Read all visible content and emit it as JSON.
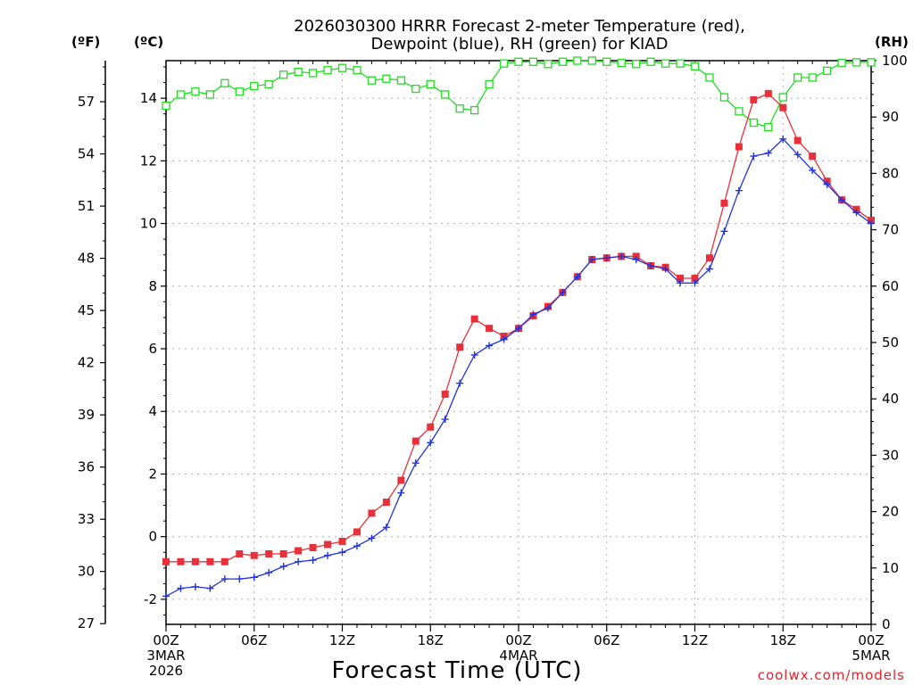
{
  "chart_data": {
    "type": "line",
    "title_line1": "2026030300 HRRR Forecast 2-meter Temperature (red),",
    "title_line2": "Dewpoint (blue), RH (green) for KIAD",
    "xlabel": "Forecast Time (UTC)",
    "credit": "coolwx.com/models",
    "units": {
      "fahrenheit": "(ºF)",
      "celsius": "(ºC)",
      "rh": "(RH)"
    },
    "x_range": [
      0,
      48
    ],
    "celsius_range": [
      -2.8,
      15.2
    ],
    "rh_range": [
      0,
      100
    ],
    "celsius_ticks": [
      "-2",
      "0",
      "2",
      "4",
      "6",
      "8",
      "10",
      "12",
      "14"
    ],
    "fahrenheit_ticks": [
      "27",
      "30",
      "33",
      "36",
      "39",
      "42",
      "45",
      "48",
      "51",
      "54",
      "57"
    ],
    "rh_ticks": [
      "0",
      "10",
      "20",
      "30",
      "40",
      "50",
      "60",
      "70",
      "80",
      "90",
      "100"
    ],
    "x_ticks": [
      {
        "hour": 0,
        "line1": "00Z",
        "line2": "3MAR",
        "line3": "2026"
      },
      {
        "hour": 6,
        "line1": "06Z",
        "line2": "",
        "line3": ""
      },
      {
        "hour": 12,
        "line1": "12Z",
        "line2": "",
        "line3": ""
      },
      {
        "hour": 18,
        "line1": "18Z",
        "line2": "",
        "line3": ""
      },
      {
        "hour": 24,
        "line1": "00Z",
        "line2": "4MAR",
        "line3": ""
      },
      {
        "hour": 30,
        "line1": "06Z",
        "line2": "",
        "line3": ""
      },
      {
        "hour": 36,
        "line1": "12Z",
        "line2": "",
        "line3": ""
      },
      {
        "hour": 42,
        "line1": "18Z",
        "line2": "",
        "line3": ""
      },
      {
        "hour": 48,
        "line1": "00Z",
        "line2": "5MAR",
        "line3": ""
      }
    ],
    "colors": {
      "temperature": "#e8303a",
      "dewpoint": "#2233dd",
      "rh": "#22dd22"
    },
    "series": [
      {
        "name": "Temperature (°C)",
        "axis": "celsius",
        "values": [
          -0.8,
          -0.8,
          -0.8,
          -0.8,
          -0.8,
          -0.55,
          -0.6,
          -0.55,
          -0.55,
          -0.45,
          -0.35,
          -0.25,
          -0.15,
          0.15,
          0.75,
          1.1,
          1.8,
          3.05,
          3.5,
          4.55,
          6.05,
          6.95,
          6.65,
          6.4,
          6.65,
          7.05,
          7.35,
          7.8,
          8.3,
          8.85,
          8.9,
          8.95,
          8.95,
          8.65,
          8.6,
          8.25,
          8.25,
          8.9,
          10.65,
          12.45,
          13.95,
          14.15,
          13.7,
          12.65,
          12.15,
          11.35,
          10.75,
          10.45,
          10.1
        ]
      },
      {
        "name": "Dewpoint (°C)",
        "axis": "celsius",
        "values": [
          -1.9,
          -1.65,
          -1.6,
          -1.65,
          -1.35,
          -1.35,
          -1.3,
          -1.15,
          -0.95,
          -0.8,
          -0.75,
          -0.6,
          -0.5,
          -0.3,
          -0.05,
          0.3,
          1.4,
          2.35,
          3.0,
          3.75,
          4.9,
          5.8,
          6.1,
          6.3,
          6.65,
          7.1,
          7.3,
          7.8,
          8.3,
          8.85,
          8.9,
          8.95,
          8.85,
          8.65,
          8.55,
          8.1,
          8.1,
          8.55,
          9.75,
          11.05,
          12.15,
          12.25,
          12.7,
          12.2,
          11.7,
          11.25,
          10.75,
          10.35,
          10.0
        ]
      },
      {
        "name": "Relative Humidity (%)",
        "axis": "rh",
        "values": [
          92,
          94,
          94.5,
          94,
          96,
          94.5,
          95.5,
          95.8,
          97.5,
          98,
          97.8,
          98.3,
          98.7,
          98.3,
          96.5,
          96.8,
          96.5,
          95,
          95.8,
          94,
          91.5,
          91.2,
          95.8,
          99.5,
          99.8,
          99.8,
          99.4,
          99.8,
          100,
          100,
          99.8,
          99.6,
          99.4,
          99.8,
          99.5,
          99.5,
          99,
          97,
          93.5,
          91,
          89,
          88.2,
          93.5,
          97,
          97,
          98.2,
          99.6,
          99.7,
          99.7
        ]
      }
    ]
  }
}
